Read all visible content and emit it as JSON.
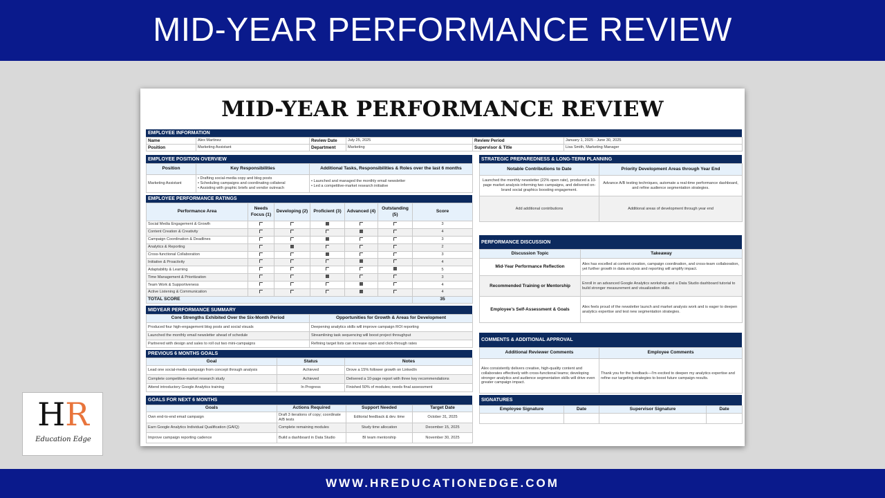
{
  "banner": {
    "title": "MID-YEAR PERFORMANCE REVIEW",
    "website": "WWW.HREDUCATIONEDGE.COM"
  },
  "logo": {
    "letters_h": "H",
    "letters_r": "R",
    "tagline": "Education Edge",
    "colors": {
      "h": "#111111",
      "r": "#e8743b"
    }
  },
  "colors": {
    "navy": "#0a1a8c",
    "section_header": "#0c2a5e",
    "column_header": "#e6f1fb"
  },
  "document": {
    "title": "MID-YEAR PERFORMANCE REVIEW"
  },
  "employee_info": {
    "header": "EMPLOYEE INFORMATION",
    "rows": [
      [
        "Name",
        "Alex Martinez",
        "Review Date",
        "July 25, 2025",
        "Review Period",
        "January 1, 2025 - June 30, 2025"
      ],
      [
        "Position",
        "Marketing Assistant",
        "Department",
        "Marketing",
        "Supervisor & Title",
        "Lisa Smith, Marketing Manager"
      ]
    ]
  },
  "position_overview": {
    "header": "EMPLOYEE POSITION OVERVIEW",
    "columns": [
      "Position",
      "Key Responsibilities",
      "Additional Tasks, Responsibilities & Roles over the last 6 months"
    ],
    "rows": [
      [
        "Marketing Assistant",
        "• Drafting social-media copy and blog posts\n• Scheduling campaigns and coordinating collateral\n• Assisting with graphic briefs and vendor outreach",
        "• Launched and managed the monthly email newsletter\n• Led a competitive-market research initiative"
      ]
    ]
  },
  "ratings": {
    "header": "EMPLOYEE PERFORMANCE RATINGS",
    "columns": [
      "Performance Area",
      "Needs Focus (1)",
      "Developing (2)",
      "Proficient (3)",
      "Advanced (4)",
      "Outstanding (5)",
      "Score"
    ],
    "rows": [
      {
        "area": "Social Media Engagement & Growth",
        "rating": 3,
        "score": "3"
      },
      {
        "area": "Content Creation & Creativity",
        "rating": 4,
        "score": "4"
      },
      {
        "area": "Campaign Coordination & Deadlines",
        "rating": 3,
        "score": "3"
      },
      {
        "area": "Analytics & Reporting",
        "rating": 2,
        "score": "2"
      },
      {
        "area": "Cross-functional Collaboration",
        "rating": 3,
        "score": "3"
      },
      {
        "area": "Initiative & Proactivity",
        "rating": 4,
        "score": "4"
      },
      {
        "area": "Adaptability & Learning",
        "rating": 5,
        "score": "5"
      },
      {
        "area": "Time Management & Prioritization",
        "rating": 3,
        "score": "3"
      },
      {
        "area": "Team Work & Supportiveness",
        "rating": 4,
        "score": "4"
      },
      {
        "area": "Active Listening & Communication",
        "rating": 4,
        "score": "4"
      }
    ],
    "total_label": "TOTAL SCORE",
    "total": "35"
  },
  "summary": {
    "header": "MIDYEAR PERFORMANCE SUMMARY",
    "columns": [
      "Core Strengths Exhibited Over the Six-Month Period",
      "Opportunities for Growth & Areas for Development"
    ],
    "rows": [
      [
        "Produced four high-engagement blog posts and social visuals",
        "Deepening analytics skills will improve campaign ROI reporting"
      ],
      [
        "Launched the monthly email newsletter ahead of schedule",
        "Streamlining task sequencing will boost project throughput"
      ],
      [
        "Partnered with design and sales to roll out two mini-campaigns",
        "Refining target lists can increase open and click-through rates"
      ]
    ]
  },
  "previous_goals": {
    "header": "PREVIOUS 6 MONTHS GOALS",
    "columns": [
      "Goal",
      "Status",
      "Notes"
    ],
    "rows": [
      [
        "Lead one social-media campaign from concept through analysis",
        "Achieved",
        "Drove a 15% follower growth on LinkedIn"
      ],
      [
        "Complete competitive-market research study",
        "Achieved",
        "Delivered a 10-page report with three key recommendations"
      ],
      [
        "Attend introductory Google Analytics training",
        "In Progress",
        "Finished 50% of modules; needs final assessment"
      ]
    ]
  },
  "next_goals": {
    "header": "GOALS FOR NEXT 6 MONTHS",
    "columns": [
      "Goals",
      "Actions Required",
      "Support Needed",
      "Target Date"
    ],
    "rows": [
      [
        "Own end-to-end email campaign",
        "Draft 3 iterations of copy; coordinate A/B tests",
        "Editorial feedback & dev. time",
        "October 31, 2025"
      ],
      [
        "Earn Google Analytics Individual Qualification (GAIQ)",
        "Complete remaining modules",
        "Study time allocation",
        "December 15, 2025"
      ],
      [
        "Improve campaign reporting cadence",
        "Build a dashboard in Data Studio",
        "BI team mentorship",
        "November 30, 2025"
      ]
    ]
  },
  "strategic": {
    "header": "STRATEGIC PREPAREDNESS & LONG-TERM PLANNING",
    "columns": [
      "Notable Contributions to Date",
      "Priority Development Areas through Year End"
    ],
    "rows": [
      [
        "Launched the monthly newsletter (22% open rate), produced a 10-page market analysis informing two campaigns, and delivered on-brand social graphics boosting engagement.",
        "Advance A/B testing techniques, automate a real-time performance dashboard, and refine audience segmentation strategies."
      ],
      [
        "Add additional contributions",
        "Additional areas of development through year end"
      ]
    ]
  },
  "discussion": {
    "header": "PERFORMANCE DISCUSSION",
    "columns": [
      "Discussion Topic",
      "Takeaway"
    ],
    "rows": [
      [
        "Mid-Year Performance Reflection",
        "Alex has excelled at content creation, campaign coordination, and cross-team collaboration, yet further growth in data analysis and reporting will amplify impact."
      ],
      [
        "Recommended Training or Mentorship",
        "Enroll in an advanced Google Analytics workshop and a Data Studio dashboard tutorial to build stronger measurement and visualization skills."
      ],
      [
        "Employee's Self-Assessment & Goals",
        "Alex feels proud of the newsletter launch and market analysis work and is eager to deepen analytics expertise and test new segmentation strategies."
      ]
    ]
  },
  "comments": {
    "header": "COMMENTS & ADDITIONAL APPROVAL",
    "columns": [
      "Additional Reviewer Comments",
      "Employee Comments"
    ],
    "rows": [
      [
        "Alex consistently delivers creative, high-quality content and collaborates effectively with cross-functional teams; developing stronger analytics and audience segmentation skills will drive even greater campaign impact.",
        "Thank you for the feedback—I'm excited to deepen my analytics expertise and refine our targeting strategies to boost future campaign results."
      ]
    ]
  },
  "signatures": {
    "header": "SIGNATURES",
    "columns": [
      "Employee Signature",
      "Date",
      "Supervisor Signature",
      "Date"
    ],
    "rows": [
      [
        "",
        "",
        "",
        ""
      ]
    ]
  }
}
